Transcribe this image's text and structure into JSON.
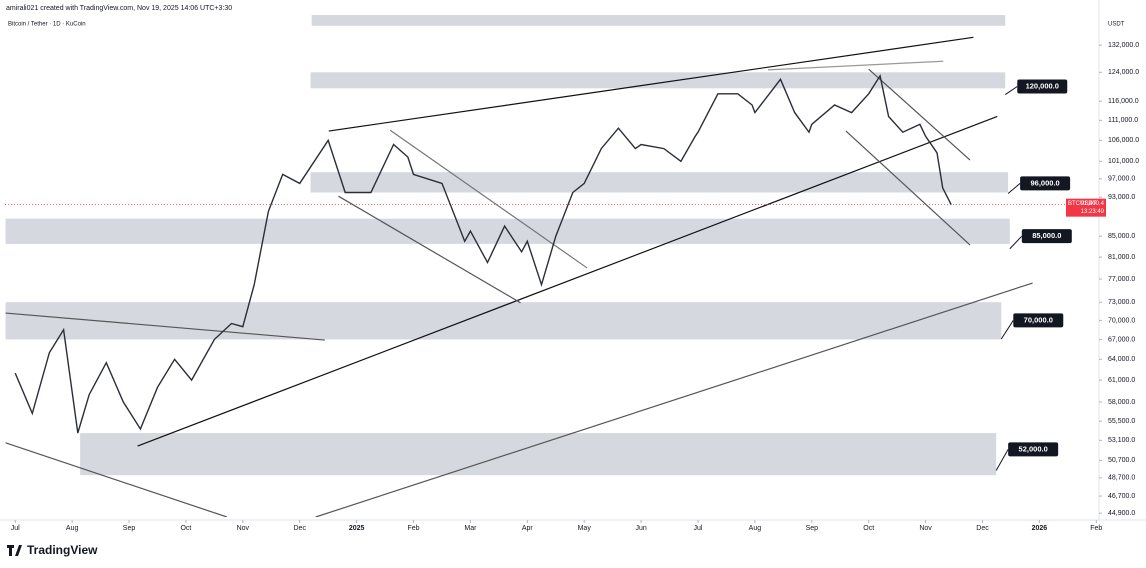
{
  "header": {
    "credit": "amirali021 created with TradingView.com, Nov 19, 2025 14:06 UTC+3:30",
    "brand": "TradingView"
  },
  "chart_data": {
    "type": "line",
    "title": "Bitcoin / Tether · 1D · KuCoin",
    "y_unit": "USDT",
    "log_scale": true,
    "xlim": [
      -0.18,
      19.03
    ],
    "ylim": [
      44500,
      141500
    ],
    "xticks": [
      {
        "value": 0,
        "label": "Jul"
      },
      {
        "value": 1,
        "label": "Aug"
      },
      {
        "value": 2,
        "label": "Sep"
      },
      {
        "value": 3,
        "label": "Oct"
      },
      {
        "value": 4,
        "label": "Nov"
      },
      {
        "value": 5,
        "label": "Dec"
      },
      {
        "value": 6,
        "label": "2025"
      },
      {
        "value": 7,
        "label": "Feb"
      },
      {
        "value": 8,
        "label": "Mar"
      },
      {
        "value": 9,
        "label": "Apr"
      },
      {
        "value": 10,
        "label": "May"
      },
      {
        "value": 11,
        "label": "Jun"
      },
      {
        "value": 12,
        "label": "Jul"
      },
      {
        "value": 13,
        "label": "Aug"
      },
      {
        "value": 14,
        "label": "Sep"
      },
      {
        "value": 15,
        "label": "Oct"
      },
      {
        "value": 16,
        "label": "Nov"
      },
      {
        "value": 17,
        "label": "Dec"
      },
      {
        "value": 18,
        "label": "2026"
      },
      {
        "value": 19,
        "label": "Feb"
      }
    ],
    "yticks": [
      {
        "value": 132000,
        "label": "132,000.0"
      },
      {
        "value": 124000,
        "label": "124,000.0"
      },
      {
        "value": 116000,
        "label": "116,000.0"
      },
      {
        "value": 111000,
        "label": "111,000.0"
      },
      {
        "value": 106000,
        "label": "106,000.0"
      },
      {
        "value": 101000,
        "label": "101,000.0"
      },
      {
        "value": 97000,
        "label": "97,000.0"
      },
      {
        "value": 93000,
        "label": "93,000.0"
      },
      {
        "value": 85000,
        "label": "85,000.0"
      },
      {
        "value": 81000,
        "label": "81,000.0"
      },
      {
        "value": 77000,
        "label": "77,000.0"
      },
      {
        "value": 73000,
        "label": "73,000.0"
      },
      {
        "value": 70000,
        "label": "70,000.0"
      },
      {
        "value": 67000,
        "label": "67,000.0"
      },
      {
        "value": 64000,
        "label": "64,000.0"
      },
      {
        "value": 61000,
        "label": "61,000.0"
      },
      {
        "value": 58000,
        "label": "58,000.0"
      },
      {
        "value": 55500,
        "label": "55,500.0"
      },
      {
        "value": 53100,
        "label": "53,100.0"
      },
      {
        "value": 50700,
        "label": "50,700.0"
      },
      {
        "value": 48700,
        "label": "48,700.0"
      },
      {
        "value": 46700,
        "label": "46,700.0"
      },
      {
        "value": 44900,
        "label": "44,900.0"
      }
    ],
    "series": [
      {
        "name": "BTCUSDT",
        "color": "#2a2e39",
        "x": [
          0,
          0.3,
          0.6,
          0.85,
          1.1,
          1.3,
          1.6,
          1.9,
          2.2,
          2.5,
          2.8,
          3.1,
          3.5,
          3.8,
          4,
          4.2,
          4.45,
          4.7,
          5,
          5.5,
          5.8,
          6,
          6.25,
          6.65,
          6.9,
          7,
          7.5,
          7.9,
          8,
          8.3,
          8.6,
          8.9,
          9,
          9.25,
          9.5,
          9.8,
          10,
          10.3,
          10.6,
          10.9,
          11,
          11.4,
          11.7,
          11.95,
          12,
          12.35,
          12.7,
          12.95,
          13,
          13.45,
          13.7,
          13.95,
          14,
          14.4,
          14.7,
          15,
          15.2,
          15.35,
          15.6,
          15.9,
          16,
          16.2,
          16.3,
          16.45
        ],
        "values": [
          62000,
          56500,
          65000,
          68500,
          54000,
          59000,
          63500,
          58000,
          54500,
          60000,
          64000,
          61000,
          67000,
          69500,
          69000,
          76000,
          90000,
          98000,
          96000,
          106000,
          94000,
          94000,
          94000,
          105000,
          102000,
          98000,
          96000,
          84000,
          86000,
          80000,
          87000,
          82000,
          84000,
          76000,
          85000,
          94000,
          96000,
          104000,
          109000,
          104000,
          105000,
          104000,
          101000,
          107000,
          108000,
          118000,
          118000,
          115000,
          113000,
          122000,
          113000,
          108000,
          110000,
          115000,
          113000,
          118000,
          123000,
          112000,
          108000,
          110000,
          107000,
          103000,
          95000,
          91400
        ]
      }
    ],
    "last_price": {
      "value": 91400.4,
      "label": "91,400.4",
      "countdown": "13:23:49"
    },
    "zones": [
      {
        "low": 138000,
        "high": 141500,
        "x0": 5.21,
        "x1": 17.4
      },
      {
        "low": 119500,
        "high": 124000,
        "x0": 5.19,
        "x1": 17.4,
        "level": {
          "value": 120000,
          "label": "120,000.0"
        }
      },
      {
        "low": 94000,
        "high": 98500,
        "x0": 5.19,
        "x1": 17.45,
        "level": {
          "value": 96000,
          "label": "96,000.0"
        }
      },
      {
        "low": 83500,
        "high": 88500,
        "x0": -0.17,
        "x1": 17.48,
        "level": {
          "value": 85000,
          "label": "85,000.0"
        }
      },
      {
        "low": 67000,
        "high": 73000,
        "x0": -0.17,
        "x1": 17.33,
        "level": {
          "value": 70000,
          "label": "70,000.0"
        }
      },
      {
        "low": 49000,
        "high": 54000,
        "x0": 1.14,
        "x1": 17.24,
        "level": {
          "value": 52000,
          "label": "52,000.0"
        }
      }
    ],
    "trendlines": [
      {
        "x": [
          5.51,
          16.84
        ],
        "y": [
          108300,
          134400
        ],
        "color": "#111111"
      },
      {
        "x": [
          2.15,
          17.26
        ],
        "y": [
          52400,
          112000
        ],
        "color": "#111111"
      },
      {
        "x": [
          5.28,
          17.88
        ],
        "y": [
          44500,
          76300
        ],
        "color": "#555555"
      },
      {
        "x": [
          -0.17,
          5.44
        ],
        "y": [
          71200,
          66900
        ],
        "color": "#555555"
      },
      {
        "x": [
          -0.17,
          3.72
        ],
        "y": [
          52800,
          44500
        ],
        "color": "#555555"
      },
      {
        "x": [
          6.59,
          10.05
        ],
        "y": [
          108500,
          79000
        ],
        "color": "#777777"
      },
      {
        "x": [
          5.68,
          8.88
        ],
        "y": [
          93200,
          72900
        ],
        "color": "#555555"
      },
      {
        "x": [
          15.0,
          16.78
        ],
        "y": [
          124900,
          101300
        ],
        "color": "#555555"
      },
      {
        "x": [
          14.6,
          16.78
        ],
        "y": [
          108300,
          83300
        ],
        "color": "#555555"
      },
      {
        "x": [
          13.23,
          16.31
        ],
        "y": [
          124700,
          127200
        ],
        "color": "#999999"
      }
    ]
  }
}
